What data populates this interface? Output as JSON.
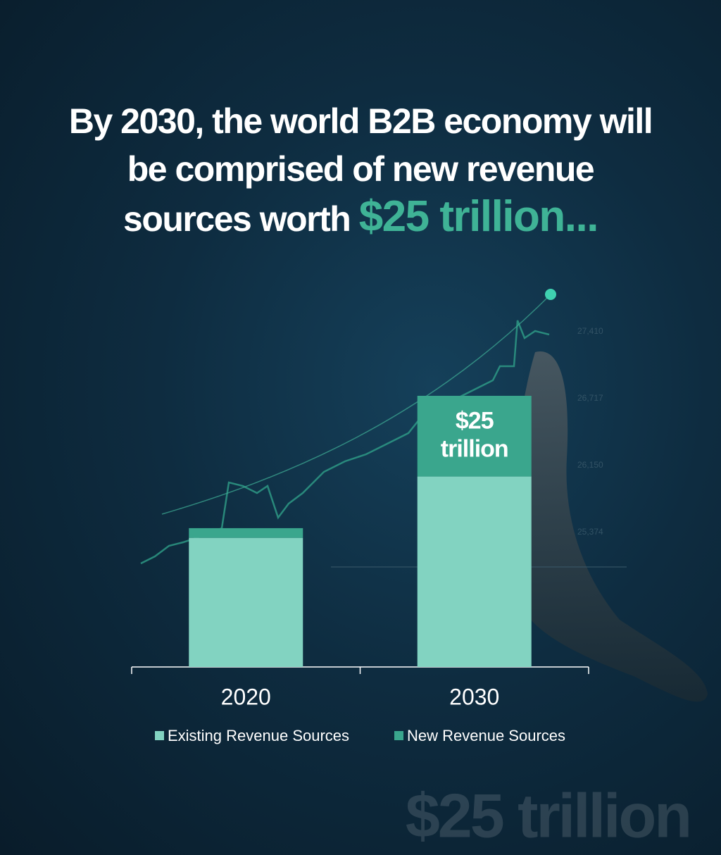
{
  "chart_data": {
    "type": "stacked-bar",
    "title": "By 2030, the world B2B economy will be comprised of new revenue sources worth",
    "title_highlight": "$25 trillion...",
    "categories": [
      "2020",
      "2030"
    ],
    "series": [
      {
        "name": "Existing Revenue Sources",
        "color": "#82d3c1",
        "values": [
          40,
          59
        ]
      },
      {
        "name": "New Revenue Sources",
        "color": "#3aa68d",
        "values": [
          3,
          25
        ],
        "value_labels": [
          null,
          "$25 trillion"
        ]
      }
    ],
    "background_ticks": [
      "27,410",
      "26,717",
      "26,150",
      "25,374"
    ],
    "watermark": "$25 trillion"
  }
}
